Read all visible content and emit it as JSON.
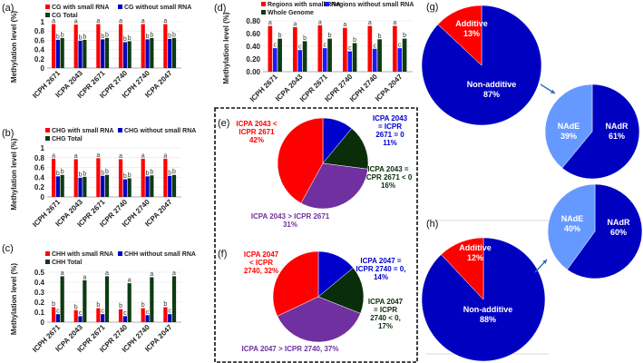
{
  "chart_data": [
    {
      "id": "a",
      "panel_label": "(a)",
      "type": "bar",
      "ylabel": "Methylation level  (%)",
      "ylim": [
        0,
        1
      ],
      "yticks": [
        "0",
        "0.2",
        "0.4",
        "0.6",
        "0.8",
        "1"
      ],
      "categories": [
        "ICPH 2671",
        "ICPA 2043",
        "ICPR 2671",
        "ICPR 2740",
        "ICPH 2740",
        "ICPA 2047"
      ],
      "series": [
        {
          "name": "CG with small RNA",
          "color": "#ff0000",
          "values": [
            0.95,
            0.94,
            0.95,
            0.95,
            0.95,
            0.95
          ],
          "sig": "a"
        },
        {
          "name": "CG without small RNA",
          "color": "#0000c0",
          "values": [
            0.61,
            0.59,
            0.62,
            0.56,
            0.62,
            0.63
          ],
          "sig": "b"
        },
        {
          "name": "CG Total",
          "color": "#0d3b12",
          "values": [
            0.65,
            0.61,
            0.65,
            0.58,
            0.65,
            0.65
          ],
          "sig": "b"
        }
      ]
    },
    {
      "id": "b",
      "panel_label": "(b)",
      "type": "bar",
      "ylabel": "Methylation level  (%)",
      "ylim": [
        0,
        1
      ],
      "yticks": [
        "0",
        "0.2",
        "0.4",
        "0.6",
        "0.8",
        "1"
      ],
      "categories": [
        "ICPH 2671",
        "ICPA 2043",
        "ICPR 2671",
        "ICPR 2740",
        "ICPH 2740",
        "ICPA 2047"
      ],
      "series": [
        {
          "name": "CHG with small RNA",
          "color": "#ff0000",
          "values": [
            0.78,
            0.77,
            0.79,
            0.77,
            0.78,
            0.78
          ],
          "sig": "a"
        },
        {
          "name": "CHG without small RNA",
          "color": "#0000c0",
          "values": [
            0.42,
            0.39,
            0.43,
            0.36,
            0.42,
            0.43
          ],
          "sig": "b"
        },
        {
          "name": "CHG Total",
          "color": "#0d3b12",
          "values": [
            0.45,
            0.41,
            0.45,
            0.38,
            0.44,
            0.45
          ],
          "sig": "b"
        }
      ]
    },
    {
      "id": "c",
      "panel_label": "(c)",
      "type": "bar",
      "ylabel": "Methylation level  (%)",
      "ylim": [
        0,
        0.5
      ],
      "yticks": [
        "0",
        "0.1",
        "0.2",
        "0.3",
        "0.4",
        "0.5"
      ],
      "categories": [
        "ICPH 2671",
        "ICPA 2043",
        "ICPR 2671",
        "ICPR 2740",
        "ICPH 2740",
        "ICPA 2047"
      ],
      "series": [
        {
          "name": "CHH with small RNA",
          "color": "#ff0000",
          "values": [
            0.15,
            0.12,
            0.14,
            0.13,
            0.14,
            0.15
          ],
          "sig": "b"
        },
        {
          "name": "CHH without small RNA",
          "color": "#0000c0",
          "values": [
            0.08,
            0.06,
            0.08,
            0.06,
            0.07,
            0.08
          ],
          "sig": "c"
        },
        {
          "name": "CHH Total",
          "color": "#0d3b12",
          "values": [
            0.46,
            0.42,
            0.46,
            0.39,
            0.45,
            0.46
          ],
          "sig": "a"
        }
      ]
    },
    {
      "id": "d",
      "panel_label": "(d)",
      "type": "bar",
      "ylabel": "Methylation level  (%)",
      "ylim": [
        0,
        0.8
      ],
      "yticks": [
        "0.00",
        "0.20",
        "0.40",
        "0.60",
        "0.80"
      ],
      "categories": [
        "ICPH 2671",
        "ICPA 2043",
        "ICPR 2671",
        "ICPR 2740",
        "ICPH 2740",
        "ICPA 2047"
      ],
      "series": [
        {
          "name": "Regions with small RNA",
          "color": "#ff0000",
          "values": [
            0.72,
            0.7,
            0.73,
            0.69,
            0.72,
            0.72
          ],
          "sig": "a"
        },
        {
          "name": "Regions without small RNA",
          "color": "#1a1aff",
          "values": [
            0.37,
            0.34,
            0.37,
            0.32,
            0.36,
            0.37
          ],
          "sig": "c"
        },
        {
          "name": "Whole Genome",
          "color": "#0d3b12",
          "values": [
            0.52,
            0.48,
            0.52,
            0.45,
            0.51,
            0.52
          ],
          "sig": "b"
        }
      ]
    },
    {
      "id": "e",
      "panel_label": "(e)",
      "type": "pie",
      "slices": [
        {
          "lines": [
            "ICPA 2043",
            "= ICPR",
            "2671 = 0",
            "11%"
          ],
          "value": 11,
          "color": "#0000cc"
        },
        {
          "lines": [
            "ICPA 2043 =",
            "ICPR 2671 < 0",
            "16%"
          ],
          "value": 16,
          "color": "#0a2e0a"
        },
        {
          "lines": [
            "ICPA 2043 > ICPR 2671",
            "31%"
          ],
          "value": 31,
          "color": "#7030a0"
        },
        {
          "lines": [
            "ICPA 2043 <",
            "ICPR 2671",
            "42%"
          ],
          "value": 42,
          "color": "#ff0000"
        }
      ]
    },
    {
      "id": "f",
      "panel_label": "(f)",
      "type": "pie",
      "slices": [
        {
          "lines": [
            "ICPA 2047 =",
            "ICPR 2740 = 0,",
            "14%"
          ],
          "value": 14,
          "color": "#0000cc"
        },
        {
          "lines": [
            "ICPA 2047",
            "= ICPR",
            "2740 < 0,",
            "17%"
          ],
          "value": 17,
          "color": "#0a2e0a"
        },
        {
          "lines": [
            "ICPA 2047 > ICPR 2740, 37%"
          ],
          "value": 37,
          "color": "#7030a0"
        },
        {
          "lines": [
            "ICPA 2047",
            "< ICPR",
            "2740, 32%"
          ],
          "value": 32,
          "color": "#ff0000"
        }
      ]
    },
    {
      "id": "g",
      "panel_label": "(g)",
      "type": "pie",
      "slices": [
        {
          "lines": [
            "Non-additive",
            "87%"
          ],
          "value": 87,
          "color": "#0000c0"
        },
        {
          "lines": [
            "Additive",
            "13%"
          ],
          "value": 13,
          "color": "#ff0000"
        }
      ]
    },
    {
      "id": "g2",
      "panel_label": "",
      "type": "pie",
      "slices": [
        {
          "lines": [
            "NAdR",
            "61%"
          ],
          "value": 61,
          "color": "#0000c0"
        },
        {
          "lines": [
            "NAdE",
            "39%"
          ],
          "value": 39,
          "color": "#6699ff"
        }
      ]
    },
    {
      "id": "h",
      "panel_label": "(h)",
      "type": "pie",
      "slices": [
        {
          "lines": [
            "Non-additive",
            "88%"
          ],
          "value": 88,
          "color": "#0000c0"
        },
        {
          "lines": [
            "Additive",
            "12%"
          ],
          "value": 12,
          "color": "#ff0000"
        }
      ]
    },
    {
      "id": "h2",
      "panel_label": "",
      "type": "pie",
      "slices": [
        {
          "lines": [
            "NAdR",
            "60%"
          ],
          "value": 60,
          "color": "#0000c0"
        },
        {
          "lines": [
            "NAdE",
            "40%"
          ],
          "value": 40,
          "color": "#6699ff"
        }
      ]
    }
  ]
}
